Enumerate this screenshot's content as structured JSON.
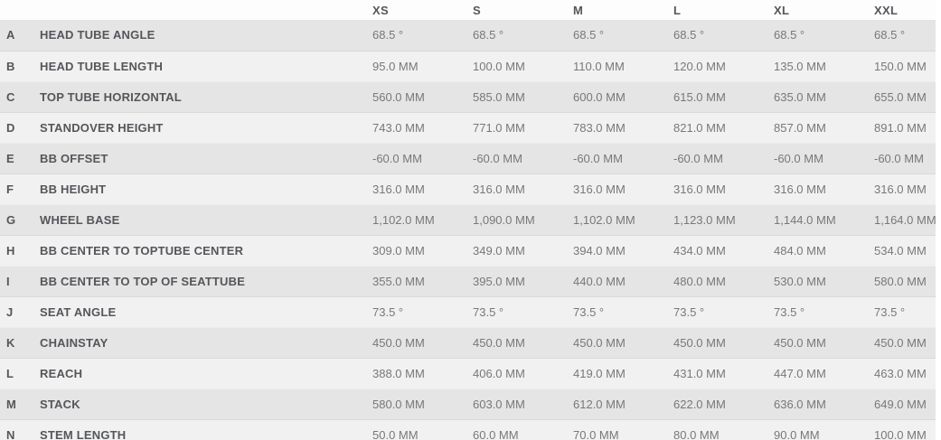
{
  "chart_data": {
    "type": "table",
    "size_headers": [
      "XS",
      "S",
      "M",
      "L",
      "XL",
      "XXL"
    ],
    "rows": [
      {
        "letter": "A",
        "label": "HEAD TUBE ANGLE",
        "values": [
          "68.5 °",
          "68.5 °",
          "68.5 °",
          "68.5 °",
          "68.5 °",
          "68.5 °"
        ]
      },
      {
        "letter": "B",
        "label": "HEAD TUBE LENGTH",
        "values": [
          "95.0 MM",
          "100.0 MM",
          "110.0 MM",
          "120.0 MM",
          "135.0 MM",
          "150.0 MM"
        ]
      },
      {
        "letter": "C",
        "label": "TOP TUBE HORIZONTAL",
        "values": [
          "560.0 MM",
          "585.0 MM",
          "600.0 MM",
          "615.0 MM",
          "635.0 MM",
          "655.0 MM"
        ]
      },
      {
        "letter": "D",
        "label": "STANDOVER HEIGHT",
        "values": [
          "743.0 MM",
          "771.0 MM",
          "783.0 MM",
          "821.0 MM",
          "857.0 MM",
          "891.0 MM"
        ]
      },
      {
        "letter": "E",
        "label": "BB OFFSET",
        "values": [
          "-60.0 MM",
          "-60.0 MM",
          "-60.0 MM",
          "-60.0 MM",
          "-60.0 MM",
          "-60.0 MM"
        ]
      },
      {
        "letter": "F",
        "label": "BB HEIGHT",
        "values": [
          "316.0 MM",
          "316.0 MM",
          "316.0 MM",
          "316.0 MM",
          "316.0 MM",
          "316.0 MM"
        ]
      },
      {
        "letter": "G",
        "label": "WHEEL BASE",
        "values": [
          "1,102.0 MM",
          "1,090.0 MM",
          "1,102.0 MM",
          "1,123.0 MM",
          "1,144.0 MM",
          "1,164.0 MM"
        ]
      },
      {
        "letter": "H",
        "label": "BB CENTER TO TOPTUBE CENTER",
        "values": [
          "309.0 MM",
          "349.0 MM",
          "394.0 MM",
          "434.0 MM",
          "484.0 MM",
          "534.0 MM"
        ]
      },
      {
        "letter": "I",
        "label": "BB CENTER TO TOP OF SEATTUBE",
        "values": [
          "355.0 MM",
          "395.0 MM",
          "440.0 MM",
          "480.0 MM",
          "530.0 MM",
          "580.0 MM"
        ]
      },
      {
        "letter": "J",
        "label": "SEAT ANGLE",
        "values": [
          "73.5 °",
          "73.5 °",
          "73.5 °",
          "73.5 °",
          "73.5 °",
          "73.5 °"
        ]
      },
      {
        "letter": "K",
        "label": "CHAINSTAY",
        "values": [
          "450.0 MM",
          "450.0 MM",
          "450.0 MM",
          "450.0 MM",
          "450.0 MM",
          "450.0 MM"
        ]
      },
      {
        "letter": "L",
        "label": "REACH",
        "values": [
          "388.0 MM",
          "406.0 MM",
          "419.0 MM",
          "431.0 MM",
          "447.0 MM",
          "463.0 MM"
        ]
      },
      {
        "letter": "M",
        "label": "STACK",
        "values": [
          "580.0 MM",
          "603.0 MM",
          "612.0 MM",
          "622.0 MM",
          "636.0 MM",
          "649.0 MM"
        ]
      },
      {
        "letter": "N",
        "label": "STEM LENGTH",
        "values": [
          "50.0 MM",
          "60.0 MM",
          "70.0 MM",
          "80.0 MM",
          "90.0 MM",
          "100.0 MM"
        ]
      }
    ]
  },
  "colors": {
    "page_bg": "#ffffff",
    "header_bg": "#fdfdfd",
    "row_dark": "#e5e5e5",
    "row_light": "#f1f1f1",
    "row_border": "#d9d9d9",
    "row_light_border": "#ededed",
    "label_text": "#54565a",
    "value_text": "#77787b"
  }
}
